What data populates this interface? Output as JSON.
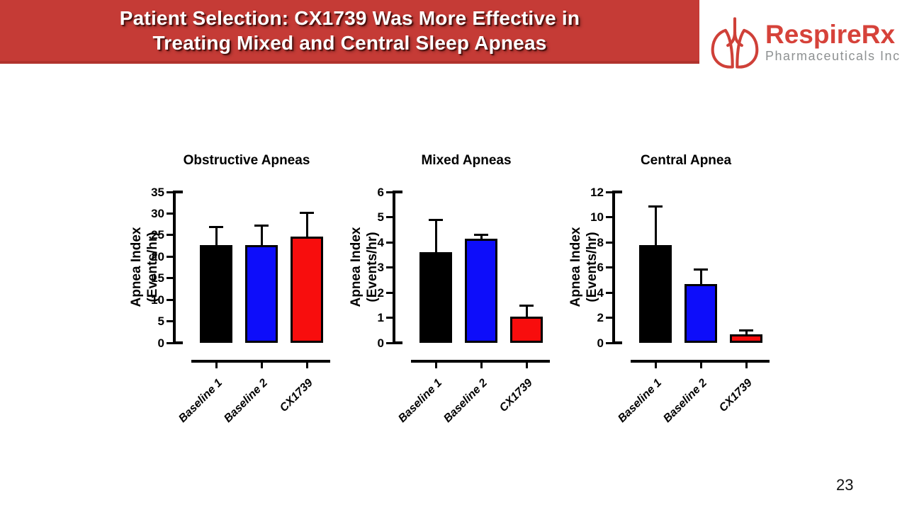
{
  "slide": {
    "title_line1": "Patient Selection: CX1739 Was More Effective in",
    "title_line2": "Treating Mixed and Central Sleep Apneas",
    "page_number": "23",
    "banner_color": "#c53b36"
  },
  "logo": {
    "name": "RespireRx",
    "subtitle": "Pharmaceuticals Inc",
    "icon": "lungs-icon",
    "brand_color": "#d6423a",
    "subtitle_color": "#8e9192"
  },
  "chart_data": [
    {
      "type": "bar",
      "title": "Obstructive Apneas",
      "ylabel_line1": "Apnea Index",
      "ylabel_line2": "(Events/hr)",
      "categories": [
        "Baseline 1",
        "Baseline 2",
        "CX1739"
      ],
      "values": [
        22.7,
        22.6,
        24.6
      ],
      "errors_up": [
        4.3,
        4.6,
        5.7
      ],
      "bar_colors": [
        "#000000",
        "#0d0dfa",
        "#f80d0d"
      ],
      "ylim": [
        0,
        35
      ],
      "ytick_step": 5,
      "grid": false,
      "legend": "none"
    },
    {
      "type": "bar",
      "title": "Mixed Apneas",
      "ylabel_line1": "Apnea Index",
      "ylabel_line2": "(Events/hr)",
      "categories": [
        "Baseline 1",
        "Baseline 2",
        "CX1739"
      ],
      "values": [
        3.6,
        4.15,
        1.05
      ],
      "errors_up": [
        1.3,
        0.15,
        0.45
      ],
      "bar_colors": [
        "#000000",
        "#0d0dfa",
        "#f80d0d"
      ],
      "ylim": [
        0,
        6
      ],
      "ytick_step": 1,
      "grid": false,
      "legend": "none"
    },
    {
      "type": "bar",
      "title": "Central Apnea",
      "ylabel_line1": "Apnea Index",
      "ylabel_line2": "(Events/hr)",
      "categories": [
        "Baseline 1",
        "Baseline 2",
        "CX1739"
      ],
      "values": [
        7.8,
        4.65,
        0.7
      ],
      "errors_up": [
        3.1,
        1.2,
        0.3
      ],
      "bar_colors": [
        "#000000",
        "#0d0dfa",
        "#f80d0d"
      ],
      "ylim": [
        0,
        12
      ],
      "ytick_step": 2,
      "grid": false,
      "legend": "none"
    }
  ]
}
